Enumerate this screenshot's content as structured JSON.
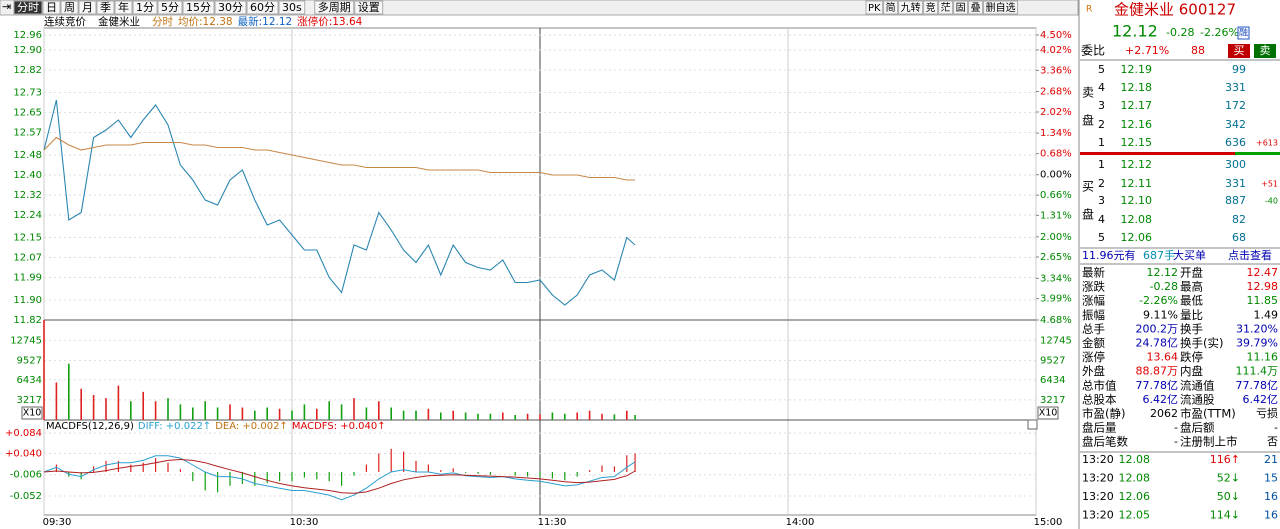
{
  "toolbar": {
    "left": [
      "分时",
      "日",
      "周",
      "月",
      "季",
      "年",
      "1分",
      "5分",
      "15分",
      "30分",
      "60分",
      "30s",
      "多周期",
      "设置"
    ],
    "right": [
      "PK",
      "简",
      "九转",
      "竞",
      "茫",
      "固",
      "叠",
      "删自选"
    ]
  },
  "info_bar": {
    "phase": "连续竞价",
    "name": "金健米业",
    "mode": "分时",
    "avg": "均价:12.38",
    "last": "最新:12.12",
    "limit": "涨停价:13.64"
  },
  "chart_data": [
    {
      "type": "line",
      "x": [
        0,
        3,
        6,
        9,
        12,
        15,
        18,
        21,
        24,
        27,
        30,
        33,
        36,
        39,
        42,
        45,
        48,
        51,
        54,
        57,
        60,
        63,
        66,
        69,
        72,
        75,
        78,
        81,
        84,
        87,
        90,
        93,
        96,
        99,
        102,
        105,
        108,
        111,
        114,
        117,
        120,
        123,
        126,
        129,
        132,
        135,
        138,
        141,
        143
      ],
      "xlim": [
        0,
        240
      ],
      "xticks": [
        {
          "value": 0,
          "label": "09:30"
        },
        {
          "value": 60,
          "label": "10:30"
        },
        {
          "value": 120,
          "label": "11:30"
        },
        {
          "value": 180,
          "label": "14:00"
        },
        {
          "value": 240,
          "label": "15:00"
        }
      ],
      "ylim": [
        11.82,
        12.96
      ],
      "yticks": [
        12.96,
        {
          "value": 12.9,
          "label": "12.90"
        },
        12.82,
        12.73,
        12.65,
        12.57,
        12.48,
        {
          "value": 12.4,
          "label": "12.40"
        },
        12.32,
        12.24,
        12.15,
        12.07,
        11.99,
        {
          "value": 11.9,
          "label": "11.90"
        },
        11.82
      ],
      "y2lim": [
        -4.68,
        4.5
      ],
      "y2ticks": [
        {
          "value": 4.5,
          "label": "4.50%"
        },
        {
          "value": 4.02,
          "label": "4.02%"
        },
        {
          "value": 3.36,
          "label": "3.36%"
        },
        {
          "value": 2.68,
          "label": "2.68%"
        },
        {
          "value": 2.02,
          "label": "2.02%"
        },
        {
          "value": 1.34,
          "label": "1.34%"
        },
        {
          "value": 0.68,
          "label": "0.68%"
        },
        {
          "value": 0,
          "label": "0.00%"
        },
        {
          "value": -0.66,
          "label": "0.66%"
        },
        {
          "value": -1.31,
          "label": "1.31%"
        },
        {
          "value": -2,
          "label": "2.00%"
        },
        {
          "value": -2.65,
          "label": "2.65%"
        },
        {
          "value": -3.34,
          "label": "3.34%"
        },
        {
          "value": -3.99,
          "label": "3.99%"
        },
        {
          "value": -4.68,
          "label": "4.68%"
        }
      ],
      "series": [
        {
          "color": "#2a86b0",
          "values": [
            12.5,
            12.7,
            12.22,
            12.25,
            12.55,
            12.58,
            12.62,
            12.55,
            12.62,
            12.68,
            12.6,
            12.44,
            12.38,
            12.3,
            12.28,
            12.38,
            12.42,
            12.3,
            12.2,
            12.22,
            12.16,
            12.1,
            12.1,
            11.99,
            11.93,
            12.12,
            12.1,
            12.25,
            12.18,
            12.1,
            12.05,
            12.12,
            12.0,
            12.12,
            12.05,
            12.03,
            12.02,
            12.06,
            11.97,
            11.97,
            11.98,
            11.92,
            11.88,
            11.92,
            12.0,
            12.02,
            11.98,
            12.15,
            12.12
          ]
        },
        {
          "color": "#c8874a",
          "values": [
            12.5,
            12.55,
            12.52,
            12.5,
            12.51,
            12.52,
            12.52,
            12.52,
            12.53,
            12.53,
            12.53,
            12.53,
            12.52,
            12.52,
            12.51,
            12.51,
            12.51,
            12.5,
            12.5,
            12.49,
            12.48,
            12.47,
            12.46,
            12.45,
            12.44,
            12.44,
            12.43,
            12.43,
            12.43,
            12.43,
            12.43,
            12.42,
            12.42,
            12.42,
            12.42,
            12.42,
            12.41,
            12.41,
            12.41,
            12.41,
            12.41,
            12.4,
            12.4,
            12.4,
            12.39,
            12.39,
            12.39,
            12.38,
            12.38
          ]
        }
      ]
    },
    {
      "type": "bar",
      "x": [
        0,
        3,
        6,
        9,
        12,
        15,
        18,
        21,
        24,
        27,
        30,
        33,
        36,
        39,
        42,
        45,
        48,
        51,
        54,
        57,
        60,
        63,
        66,
        69,
        72,
        75,
        78,
        81,
        84,
        87,
        90,
        93,
        96,
        99,
        102,
        105,
        108,
        111,
        114,
        117,
        120,
        123,
        126,
        129,
        132,
        135,
        138,
        141,
        143
      ],
      "xlim": [
        0,
        240
      ],
      "ylim": [
        0,
        16000
      ],
      "yticks": [
        3217,
        6434,
        9527,
        12745
      ],
      "unit_label": "X10",
      "up_color": "#e02020",
      "down_color": "#12a012",
      "values": [
        16000,
        6000,
        9000,
        5000,
        4000,
        3500,
        5500,
        3000,
        4500,
        3000,
        3500,
        2500,
        2000,
        3000,
        2000,
        2500,
        2000,
        1500,
        2000,
        1800,
        1500,
        2500,
        1800,
        3000,
        2500,
        3500,
        2000,
        3000,
        2000,
        1500,
        1500,
        1800,
        1200,
        1500,
        1200,
        1000,
        1000,
        1200,
        800,
        1000,
        900,
        1200,
        1000,
        1200,
        1500,
        1000,
        900,
        1500,
        800
      ]
    },
    {
      "type": "macd",
      "title": "MACDFS(12,26,9)",
      "labels": [
        "DIFF: +0.022↑",
        "DEA: +0.002↑",
        "MACDFS: +0.040↑"
      ],
      "x": [
        0,
        3,
        6,
        9,
        12,
        15,
        18,
        21,
        24,
        27,
        30,
        33,
        36,
        39,
        42,
        45,
        48,
        51,
        54,
        57,
        60,
        63,
        66,
        69,
        72,
        75,
        78,
        81,
        84,
        87,
        90,
        93,
        96,
        99,
        102,
        105,
        108,
        111,
        114,
        117,
        120,
        123,
        126,
        129,
        132,
        135,
        138,
        141,
        143
      ],
      "xlim": [
        0,
        240
      ],
      "ylim": [
        -0.093,
        0.108
      ],
      "yticks": [
        {
          "value": 0.084,
          "label": "+0.084"
        },
        {
          "value": 0.04,
          "label": "+0.040"
        },
        {
          "value": -0.006,
          "label": "-0.006"
        },
        {
          "value": -0.052,
          "label": "-0.052"
        }
      ],
      "diff": {
        "color": "#2a9fd0",
        "values": [
          0,
          0.01,
          -0.005,
          -0.01,
          0.005,
          0.015,
          0.02,
          0.02,
          0.025,
          0.035,
          0.035,
          0.03,
          0.015,
          0.0,
          -0.01,
          -0.01,
          -0.015,
          -0.025,
          -0.03,
          -0.035,
          -0.04,
          -0.04,
          -0.045,
          -0.05,
          -0.06,
          -0.05,
          -0.035,
          -0.015,
          0.0,
          0.005,
          0.0,
          0.0,
          -0.005,
          -0.002,
          -0.008,
          -0.01,
          -0.012,
          -0.01,
          -0.015,
          -0.018,
          -0.02,
          -0.025,
          -0.03,
          -0.028,
          -0.02,
          -0.012,
          -0.01,
          0.01,
          0.022
        ]
      },
      "dea": {
        "color": "#b02020",
        "values": [
          0,
          0.002,
          0.0,
          -0.002,
          -0.001,
          0.003,
          0.008,
          0.012,
          0.015,
          0.02,
          0.025,
          0.027,
          0.025,
          0.02,
          0.012,
          0.005,
          -0.002,
          -0.01,
          -0.018,
          -0.025,
          -0.03,
          -0.034,
          -0.037,
          -0.04,
          -0.045,
          -0.046,
          -0.043,
          -0.035,
          -0.025,
          -0.017,
          -0.012,
          -0.008,
          -0.007,
          -0.006,
          -0.007,
          -0.008,
          -0.009,
          -0.01,
          -0.011,
          -0.013,
          -0.015,
          -0.018,
          -0.021,
          -0.023,
          -0.022,
          -0.019,
          -0.016,
          -0.008,
          0.002
        ]
      },
      "macd": {
        "up_color": "#e02020",
        "down_color": "#12a012",
        "values": [
          0,
          0.016,
          -0.01,
          -0.016,
          0.012,
          0.024,
          0.024,
          0.016,
          0.02,
          0.03,
          0.02,
          0.006,
          -0.02,
          -0.04,
          -0.044,
          -0.03,
          -0.026,
          -0.03,
          -0.024,
          -0.02,
          -0.02,
          -0.012,
          -0.016,
          -0.02,
          -0.03,
          -0.008,
          0.016,
          0.04,
          0.05,
          0.044,
          0.024,
          0.016,
          0.004,
          0.008,
          -0.002,
          -0.004,
          -0.006,
          0.0,
          -0.008,
          -0.01,
          -0.01,
          -0.014,
          -0.018,
          -0.01,
          0.004,
          0.014,
          0.012,
          0.036,
          0.04
        ]
      }
    }
  ],
  "quote": {
    "logo": "R",
    "title": "金健米业 600127",
    "price": "12.12",
    "change": "-0.28",
    "pct": "-2.26%",
    "tag": "融",
    "ratio": {
      "label": "委比",
      "pct": "+2.71%",
      "diff": "88",
      "buy": "买",
      "sell": "卖"
    },
    "sell_label": [
      "卖",
      "盘"
    ],
    "buy_label": [
      "买",
      "盘"
    ],
    "asks": [
      {
        "level": "5",
        "price": "12.19",
        "vol": "99"
      },
      {
        "level": "4",
        "price": "12.18",
        "vol": "331"
      },
      {
        "level": "3",
        "price": "12.17",
        "vol": "172"
      },
      {
        "level": "2",
        "price": "12.16",
        "vol": "342"
      },
      {
        "level": "1",
        "price": "12.15",
        "vol": "636",
        "delta": "+613"
      }
    ],
    "bids": [
      {
        "level": "1",
        "price": "12.12",
        "vol": "300"
      },
      {
        "level": "2",
        "price": "12.11",
        "vol": "331",
        "delta": "+51"
      },
      {
        "level": "3",
        "price": "12.10",
        "vol": "887",
        "delta": "-40"
      },
      {
        "level": "4",
        "price": "12.08",
        "vol": "82"
      },
      {
        "level": "5",
        "price": "12.06",
        "vol": "68"
      }
    ],
    "big_order": [
      "11.96元有",
      "687手",
      "大买单",
      "点击查看"
    ],
    "stats": [
      [
        "最新",
        "12.12",
        "开盘",
        "12.47"
      ],
      [
        "涨跌",
        "-0.28",
        "最高",
        "12.98"
      ],
      [
        "涨幅",
        "-2.26%",
        "最低",
        "11.85"
      ],
      [
        "振幅",
        "9.11%",
        "量比",
        "1.49"
      ],
      [
        "总手",
        "200.2万",
        "换手",
        "31.20%"
      ],
      [
        "金额",
        "24.78亿",
        "换手(实)",
        "39.79%"
      ],
      [
        "涨停",
        "13.64",
        "跌停",
        "11.16"
      ],
      [
        "外盘",
        "88.87万",
        "内盘",
        "111.4万"
      ],
      [
        "总市值",
        "77.78亿",
        "流通值",
        "77.78亿"
      ],
      [
        "总股本",
        "6.42亿",
        "流通股",
        "6.42亿"
      ],
      [
        "市盈(静)",
        "2062",
        "市盈(TTM)",
        "亏损"
      ],
      [
        "盘后量",
        "-",
        "盘后额",
        "-"
      ],
      [
        "盘后笔数",
        "-",
        "注册制上市",
        "否"
      ]
    ],
    "trades": [
      [
        "13:20",
        "12.08",
        "116↑",
        "21"
      ],
      [
        "13:20",
        "12.08",
        "52↓",
        "15"
      ],
      [
        "13:20",
        "12.06",
        "50↓",
        "16"
      ],
      [
        "13:20",
        "12.05",
        "114↓",
        "16"
      ]
    ]
  }
}
